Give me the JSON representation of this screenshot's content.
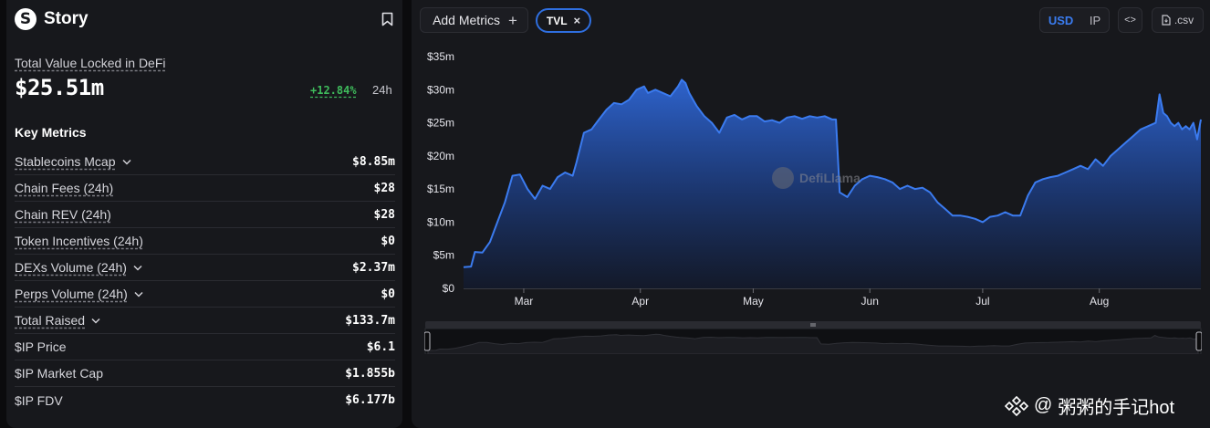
{
  "protocol": {
    "name": "Story",
    "logo_letter": "S"
  },
  "tvl": {
    "label": "Total Value Locked in DeFi",
    "value": "$25.51m",
    "change": "+12.84%",
    "period": "24h"
  },
  "key_metrics_title": "Key Metrics",
  "metrics": [
    {
      "label": "Stablecoins Mcap",
      "value": "$8.85m",
      "underline": true,
      "chevron": true
    },
    {
      "label": "Chain Fees (24h)",
      "value": "$28",
      "underline": true,
      "chevron": false
    },
    {
      "label": "Chain REV (24h)",
      "value": "$28",
      "underline": true,
      "chevron": false
    },
    {
      "label": "Token Incentives (24h)",
      "value": "$0",
      "underline": true,
      "chevron": false
    },
    {
      "label": "DEXs Volume (24h)",
      "value": "$2.37m",
      "underline": true,
      "chevron": true
    },
    {
      "label": "Perps Volume (24h)",
      "value": "$0",
      "underline": true,
      "chevron": true
    },
    {
      "label": "Total Raised",
      "value": "$133.7m",
      "underline": true,
      "chevron": true
    },
    {
      "label": "$IP Price",
      "value": "$6.1",
      "underline": false,
      "chevron": false
    },
    {
      "label": "$IP Market Cap",
      "value": "$1.855b",
      "underline": false,
      "chevron": false
    },
    {
      "label": "$IP FDV",
      "value": "$6.177b",
      "underline": false,
      "chevron": false
    }
  ],
  "toolbar": {
    "add_metrics": "Add Metrics",
    "plus": "+",
    "chip_label": "TVL",
    "chip_close": "×",
    "currency_usd": "USD",
    "currency_ip": "IP",
    "embed": "<>",
    "csv": ".csv"
  },
  "colors": {
    "accent": "#2f6fe0",
    "positive": "#3fbc5c",
    "line": "#3b7bef"
  },
  "chart_data": {
    "type": "area",
    "x_tick_labels": [
      "Mar",
      "Apr",
      "May",
      "Jun",
      "Jul",
      "Aug"
    ],
    "y_tick_labels": [
      "$0",
      "$5m",
      "$10m",
      "$15m",
      "$20m",
      "$25m",
      "$30m",
      "$35m"
    ],
    "ylim": [
      0,
      35
    ],
    "y_unit": "$m",
    "x_range": [
      "2025-02-13",
      "2025-08-28"
    ],
    "series": [
      {
        "points": [
          [
            "2025-02-13",
            3.2
          ],
          [
            "2025-02-15",
            3.3
          ],
          [
            "2025-02-16",
            5.5
          ],
          [
            "2025-02-18",
            5.4
          ],
          [
            "2025-02-20",
            7.0
          ],
          [
            "2025-02-22",
            10.0
          ],
          [
            "2025-02-24",
            13.0
          ],
          [
            "2025-02-26",
            17.0
          ],
          [
            "2025-02-28",
            17.2
          ],
          [
            "2025-03-02",
            15.0
          ],
          [
            "2025-03-04",
            13.5
          ],
          [
            "2025-03-06",
            15.5
          ],
          [
            "2025-03-08",
            15.0
          ],
          [
            "2025-03-10",
            16.8
          ],
          [
            "2025-03-12",
            17.5
          ],
          [
            "2025-03-14",
            17.0
          ],
          [
            "2025-03-15",
            19.0
          ],
          [
            "2025-03-17",
            23.5
          ],
          [
            "2025-03-19",
            24.0
          ],
          [
            "2025-03-21",
            25.5
          ],
          [
            "2025-03-23",
            27.0
          ],
          [
            "2025-03-25",
            28.0
          ],
          [
            "2025-03-27",
            27.8
          ],
          [
            "2025-03-29",
            28.5
          ],
          [
            "2025-03-31",
            30.0
          ],
          [
            "2025-04-02",
            30.5
          ],
          [
            "2025-04-03",
            29.5
          ],
          [
            "2025-04-05",
            30.0
          ],
          [
            "2025-04-07",
            29.5
          ],
          [
            "2025-04-09",
            29.0
          ],
          [
            "2025-04-11",
            30.5
          ],
          [
            "2025-04-12",
            31.5
          ],
          [
            "2025-04-13",
            31.0
          ],
          [
            "2025-04-14",
            29.5
          ],
          [
            "2025-04-16",
            27.5
          ],
          [
            "2025-04-18",
            26.0
          ],
          [
            "2025-04-20",
            25.0
          ],
          [
            "2025-04-22",
            23.5
          ],
          [
            "2025-04-24",
            25.8
          ],
          [
            "2025-04-26",
            26.2
          ],
          [
            "2025-04-28",
            25.5
          ],
          [
            "2025-04-30",
            26.0
          ],
          [
            "2025-05-02",
            26.0
          ],
          [
            "2025-05-04",
            25.2
          ],
          [
            "2025-05-06",
            25.4
          ],
          [
            "2025-05-08",
            25.0
          ],
          [
            "2025-05-10",
            25.8
          ],
          [
            "2025-05-12",
            26.0
          ],
          [
            "2025-05-14",
            25.6
          ],
          [
            "2025-05-16",
            26.0
          ],
          [
            "2025-05-18",
            25.8
          ],
          [
            "2025-05-20",
            26.0
          ],
          [
            "2025-05-22",
            25.5
          ],
          [
            "2025-05-23",
            25.5
          ],
          [
            "2025-05-24",
            14.5
          ],
          [
            "2025-05-26",
            13.8
          ],
          [
            "2025-05-28",
            15.5
          ],
          [
            "2025-05-30",
            16.5
          ],
          [
            "2025-06-01",
            17.0
          ],
          [
            "2025-06-03",
            16.8
          ],
          [
            "2025-06-05",
            16.5
          ],
          [
            "2025-06-07",
            16.0
          ],
          [
            "2025-06-09",
            15.0
          ],
          [
            "2025-06-11",
            15.5
          ],
          [
            "2025-06-13",
            15.0
          ],
          [
            "2025-06-15",
            15.2
          ],
          [
            "2025-06-17",
            14.5
          ],
          [
            "2025-06-19",
            13.0
          ],
          [
            "2025-06-21",
            12.0
          ],
          [
            "2025-06-23",
            11.0
          ],
          [
            "2025-06-25",
            11.0
          ],
          [
            "2025-06-27",
            10.8
          ],
          [
            "2025-06-29",
            10.5
          ],
          [
            "2025-07-01",
            10.0
          ],
          [
            "2025-07-03",
            10.8
          ],
          [
            "2025-07-05",
            11.0
          ],
          [
            "2025-07-07",
            11.5
          ],
          [
            "2025-07-09",
            11.0
          ],
          [
            "2025-07-11",
            11.0
          ],
          [
            "2025-07-13",
            14.0
          ],
          [
            "2025-07-15",
            16.0
          ],
          [
            "2025-07-17",
            16.5
          ],
          [
            "2025-07-19",
            16.8
          ],
          [
            "2025-07-21",
            17.0
          ],
          [
            "2025-07-23",
            17.5
          ],
          [
            "2025-07-25",
            18.0
          ],
          [
            "2025-07-27",
            18.5
          ],
          [
            "2025-07-29",
            18.0
          ],
          [
            "2025-07-31",
            19.5
          ],
          [
            "2025-08-02",
            18.5
          ],
          [
            "2025-08-04",
            20.0
          ],
          [
            "2025-08-06",
            21.0
          ],
          [
            "2025-08-08",
            22.0
          ],
          [
            "2025-08-10",
            23.0
          ],
          [
            "2025-08-12",
            24.0
          ],
          [
            "2025-08-14",
            24.5
          ],
          [
            "2025-08-16",
            25.0
          ],
          [
            "2025-08-17",
            29.3
          ],
          [
            "2025-08-18",
            26.5
          ],
          [
            "2025-08-19",
            26.0
          ],
          [
            "2025-08-20",
            25.0
          ],
          [
            "2025-08-21",
            24.5
          ],
          [
            "2025-08-22",
            25.0
          ],
          [
            "2025-08-23",
            24.0
          ],
          [
            "2025-08-24",
            24.5
          ],
          [
            "2025-08-25",
            24.0
          ],
          [
            "2025-08-26",
            25.0
          ],
          [
            "2025-08-27",
            22.5
          ],
          [
            "2025-08-28",
            25.5
          ]
        ]
      }
    ],
    "watermark": "DefiLlama",
    "grid": false
  },
  "overlay_watermark": {
    "text": "粥粥的手记hot",
    "at": "@"
  }
}
